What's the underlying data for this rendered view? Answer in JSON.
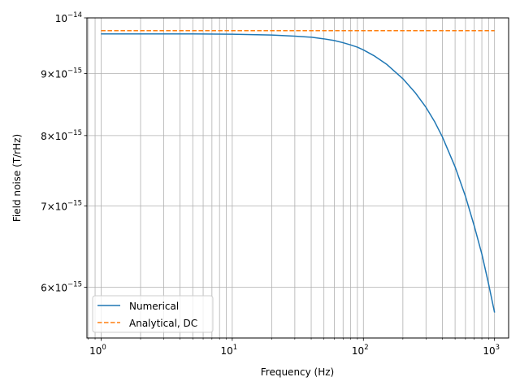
{
  "chart_data": {
    "type": "line",
    "title": "",
    "xlabel": "Frequency (Hz)",
    "ylabel": "Field noise (T/rHz)",
    "xscale": "log",
    "yscale": "log",
    "xlim": [
      0.78,
      1280
    ],
    "ylim": [
      5.45e-15,
      1e-14
    ],
    "grid": "both, major and minor",
    "legend_position": "lower-left",
    "x_ticks": [
      {
        "base": "10",
        "exp": "0",
        "value": 1
      },
      {
        "base": "10",
        "exp": "1",
        "value": 10
      },
      {
        "base": "10",
        "exp": "2",
        "value": 100
      },
      {
        "base": "10",
        "exp": "3",
        "value": 1000
      }
    ],
    "y_ticks": [
      {
        "mant": "",
        "base": "10",
        "exp": "−14",
        "value": 1e-14
      },
      {
        "mant": "9",
        "base": "10",
        "exp": "−15",
        "value": 9e-15
      },
      {
        "mant": "8",
        "base": "10",
        "exp": "−15",
        "value": 8e-15
      },
      {
        "mant": "7",
        "base": "10",
        "exp": "−15",
        "value": 7e-15
      },
      {
        "mant": "6",
        "base": "10",
        "exp": "−15",
        "value": 6e-15
      }
    ],
    "series": [
      {
        "name": "Numerical",
        "color": "#1f77b4",
        "style": "solid",
        "points": [
          [
            1,
            9.7e-15
          ],
          [
            2,
            9.7e-15
          ],
          [
            5,
            9.7e-15
          ],
          [
            10,
            9.695e-15
          ],
          [
            20,
            9.68e-15
          ],
          [
            30,
            9.66e-15
          ],
          [
            40,
            9.64e-15
          ],
          [
            50,
            9.61e-15
          ],
          [
            60,
            9.58e-15
          ],
          [
            70,
            9.54e-15
          ],
          [
            80,
            9.5e-15
          ],
          [
            90,
            9.46e-15
          ],
          [
            100,
            9.41e-15
          ],
          [
            120,
            9.31e-15
          ],
          [
            150,
            9.16e-15
          ],
          [
            200,
            8.91e-15
          ],
          [
            250,
            8.67e-15
          ],
          [
            300,
            8.44e-15
          ],
          [
            350,
            8.21e-15
          ],
          [
            400,
            7.98e-15
          ],
          [
            500,
            7.54e-15
          ],
          [
            600,
            7.13e-15
          ],
          [
            700,
            6.74e-15
          ],
          [
            800,
            6.39e-15
          ],
          [
            900,
            6.04e-15
          ],
          [
            1000,
            5.72e-15
          ]
        ]
      },
      {
        "name": "Analytical, DC",
        "color": "#ff7f0e",
        "style": "dashed",
        "points": [
          [
            1,
            9.76e-15
          ],
          [
            1000,
            9.76e-15
          ]
        ]
      }
    ]
  }
}
